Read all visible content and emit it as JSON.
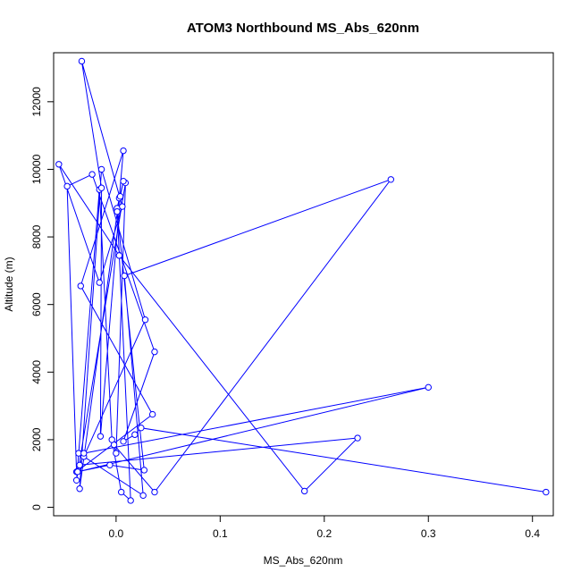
{
  "chart_data": {
    "type": "line",
    "title": "ATOM3 Northbound MS_Abs_620nm",
    "xlabel": "MS_Abs_620nm",
    "ylabel": "Altitude (m)",
    "xlim": [
      -0.06,
      0.42
    ],
    "ylim": [
      -250,
      13450
    ],
    "x_ticks": [
      0.0,
      0.1,
      0.2,
      0.3,
      0.4
    ],
    "x_tick_labels": [
      "0.0",
      "0.1",
      "0.2",
      "0.3",
      "0.4"
    ],
    "y_ticks": [
      0,
      2000,
      4000,
      6000,
      8000,
      10000,
      12000
    ],
    "y_tick_labels": [
      "0",
      "2000",
      "4000",
      "6000",
      "8000",
      "10000",
      "12000"
    ],
    "series_color": "#0000ff",
    "markers": "open-circle",
    "grid": false,
    "legend": "none",
    "x": [
      0.413,
      0.024,
      0.018,
      0.007,
      0.037,
      -0.023,
      -0.047,
      -0.038,
      0.035,
      -0.034,
      0.007,
      0.003,
      -0.035,
      -0.014,
      0.028,
      -0.031,
      0.026,
      0.008,
      0.264,
      0.037,
      -0.002,
      0.0,
      0.009,
      -0.038,
      -0.036,
      -0.016,
      -0.004,
      0.005,
      0.014,
      0.001,
      0.007,
      0.004,
      -0.015,
      -0.014,
      -0.033,
      0.006,
      -0.016,
      -0.055,
      0.003,
      0.181,
      0.232,
      -0.035,
      -0.031,
      0.3,
      -0.037,
      -0.006,
      0.027,
      0.001
    ],
    "y": [
      450,
      2350,
      2150,
      1950,
      4600,
      9850,
      9500,
      1050,
      2750,
      6550,
      10550,
      9150,
      550,
      10000,
      5550,
      1500,
      350,
      6850,
      9700,
      450,
      1850,
      1600,
      9600,
      800,
      1600,
      9400,
      2000,
      450,
      200,
      8850,
      9650,
      9200,
      2100,
      9450,
      13200,
      8900,
      6650,
      10150,
      7450,
      480,
      2050,
      1250,
      1600,
      3550,
      1050,
      1250,
      1100,
      8750
    ]
  }
}
